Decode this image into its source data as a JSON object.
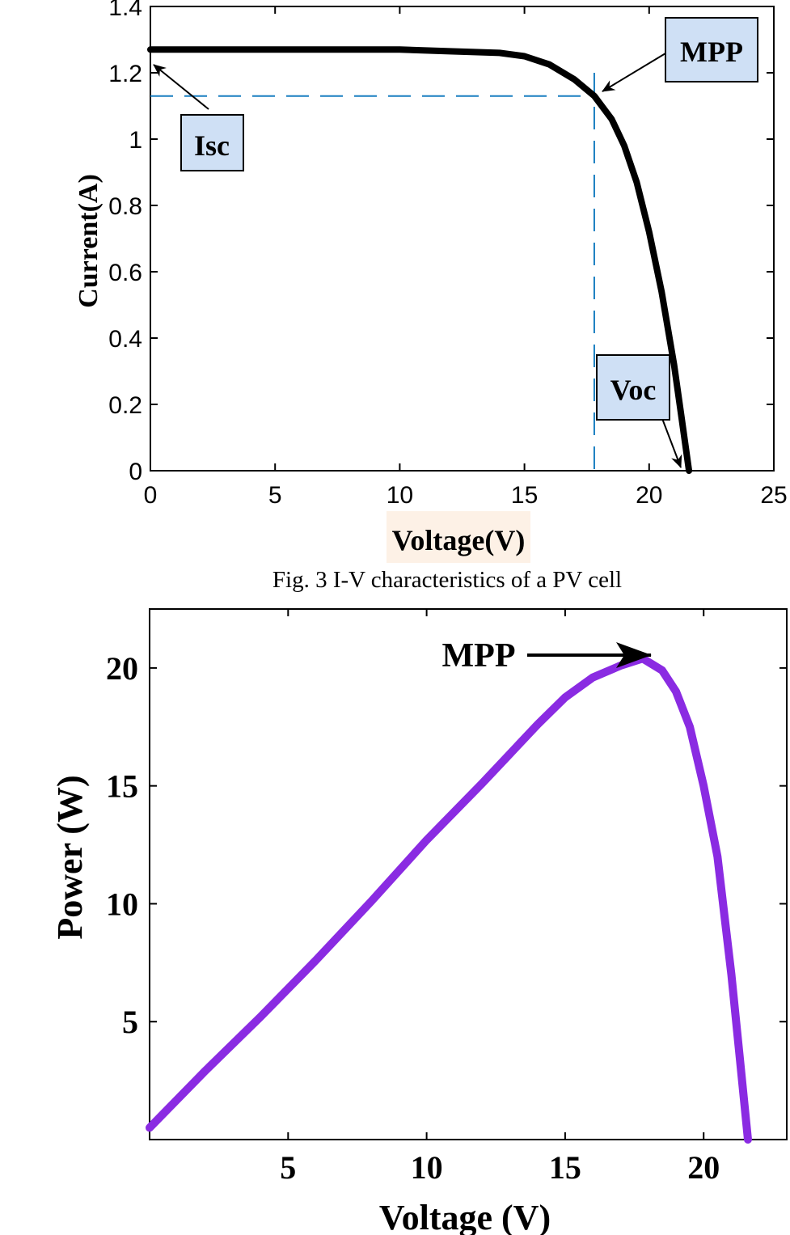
{
  "caption": "Fig. 3 I-V characteristics of a PV cell",
  "chart_data": [
    {
      "type": "line",
      "xlabel": "Voltage(V)",
      "ylabel": "Current(A)",
      "xlim": [
        0,
        25
      ],
      "ylim": [
        0,
        1.4
      ],
      "xticks": [
        "0",
        "5",
        "10",
        "15",
        "20",
        "25"
      ],
      "yticks": [
        "0",
        "0.2",
        "0.4",
        "0.6",
        "0.8",
        "1",
        "1.2",
        "1.4"
      ],
      "grid": false,
      "series": [
        {
          "color": "#000000",
          "x": [
            0,
            5,
            10,
            12,
            14,
            15,
            16,
            17,
            17.8,
            18.5,
            19,
            19.5,
            20,
            20.5,
            21,
            21.3,
            21.6
          ],
          "y": [
            1.27,
            1.27,
            1.27,
            1.265,
            1.26,
            1.25,
            1.225,
            1.18,
            1.13,
            1.06,
            0.98,
            0.87,
            0.72,
            0.54,
            0.32,
            0.16,
            0.0
          ]
        }
      ],
      "reference_lines": {
        "mpp_voltage": 17.8,
        "mpp_current": 1.13,
        "color": "#1a7fc1"
      },
      "annotations": [
        {
          "text": "MPP",
          "target_x": 17.8,
          "target_y": 1.13
        },
        {
          "text": "Isc",
          "target_x": 0.0,
          "target_y": 1.25
        },
        {
          "text": "Voc",
          "target_x": 21.5,
          "target_y": 0.0
        }
      ],
      "label_box_color": "#cfe0f5"
    },
    {
      "type": "line",
      "xlabel": "Voltage (V)",
      "ylabel": "Power (W)",
      "xlim": [
        0,
        23
      ],
      "ylim": [
        0,
        22.5
      ],
      "xticks": [
        "5",
        "10",
        "15",
        "20"
      ],
      "yticks": [
        "5",
        "10",
        "15",
        "20"
      ],
      "grid": false,
      "series": [
        {
          "color": "#8a2be2",
          "x": [
            0,
            2,
            4,
            6,
            8,
            10,
            12,
            14,
            15,
            16,
            17,
            17.8,
            18.5,
            19,
            19.5,
            20,
            20.5,
            21,
            21.3,
            21.6
          ],
          "y": [
            0.5,
            2.9,
            5.2,
            7.6,
            10.1,
            12.7,
            15.1,
            17.6,
            18.75,
            19.6,
            20.1,
            20.4,
            19.9,
            19.0,
            17.5,
            15.0,
            12.0,
            7.0,
            3.5,
            0.0
          ]
        }
      ],
      "annotations": [
        {
          "text": "MPP",
          "target_x": 17.8,
          "target_y": 20.4
        }
      ]
    }
  ]
}
